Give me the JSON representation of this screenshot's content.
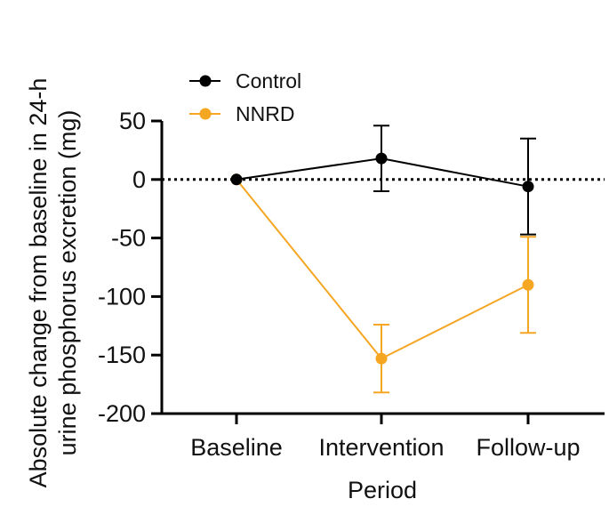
{
  "chart_data": {
    "type": "line",
    "title": "",
    "xlabel": "Period",
    "ylabel_line1": "Absolute change from baseline in 24-h",
    "ylabel_line2": "urine phosphorus excretion (mg)",
    "categories": [
      "Baseline",
      "Intervention",
      "Follow-up"
    ],
    "ylim": [
      -200,
      50
    ],
    "yticks": [
      50,
      0,
      -50,
      -100,
      -150,
      -200
    ],
    "reference_line": 0,
    "legend_position": "top-left",
    "series": [
      {
        "name": "Control",
        "color": "#000000",
        "values": [
          0,
          18,
          -6
        ],
        "err_low": [
          0,
          28,
          41
        ],
        "err_high": [
          0,
          28,
          41
        ]
      },
      {
        "name": "NNRD",
        "color": "#f5a623",
        "values": [
          0,
          -153,
          -90
        ],
        "err_low": [
          0,
          29,
          41
        ],
        "err_high": [
          0,
          29,
          41
        ]
      }
    ]
  }
}
